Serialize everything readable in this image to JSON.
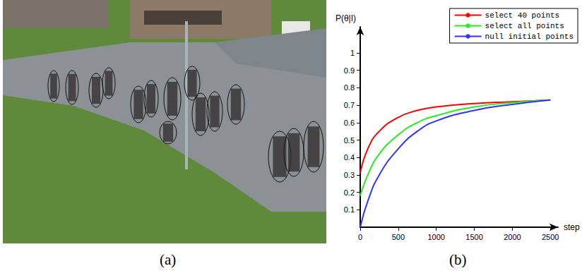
{
  "panel_labels": [
    "(a)",
    "(b)"
  ],
  "chart_data": {
    "type": "line",
    "x_label": "step",
    "y_label": "P(θ|I)",
    "x": [
      0,
      100,
      250,
      500,
      750,
      1000,
      1500,
      2000,
      2500
    ],
    "series": [
      {
        "name": "select 40 points",
        "color": "#ff0000",
        "values": [
          0.31,
          0.45,
          0.55,
          0.63,
          0.67,
          0.69,
          0.71,
          0.72,
          0.73
        ]
      },
      {
        "name": "select all points",
        "color": "#22ee22",
        "values": [
          0.18,
          0.3,
          0.42,
          0.53,
          0.6,
          0.64,
          0.69,
          0.715,
          0.73
        ]
      },
      {
        "name": "null initial points",
        "color": "#3333ff",
        "values": [
          0,
          0.15,
          0.3,
          0.45,
          0.55,
          0.61,
          0.67,
          0.705,
          0.73
        ]
      }
    ],
    "xlim": [
      0,
      2600
    ],
    "xticks": [
      0,
      500,
      1000,
      1500,
      2000,
      2500
    ],
    "ylim": [
      0,
      1.15
    ],
    "yticks": [
      0.1,
      0.2,
      0.3,
      0.4,
      0.5,
      0.6,
      0.7,
      0.8,
      0.9,
      1
    ],
    "grid": false,
    "legend": "upper right"
  }
}
